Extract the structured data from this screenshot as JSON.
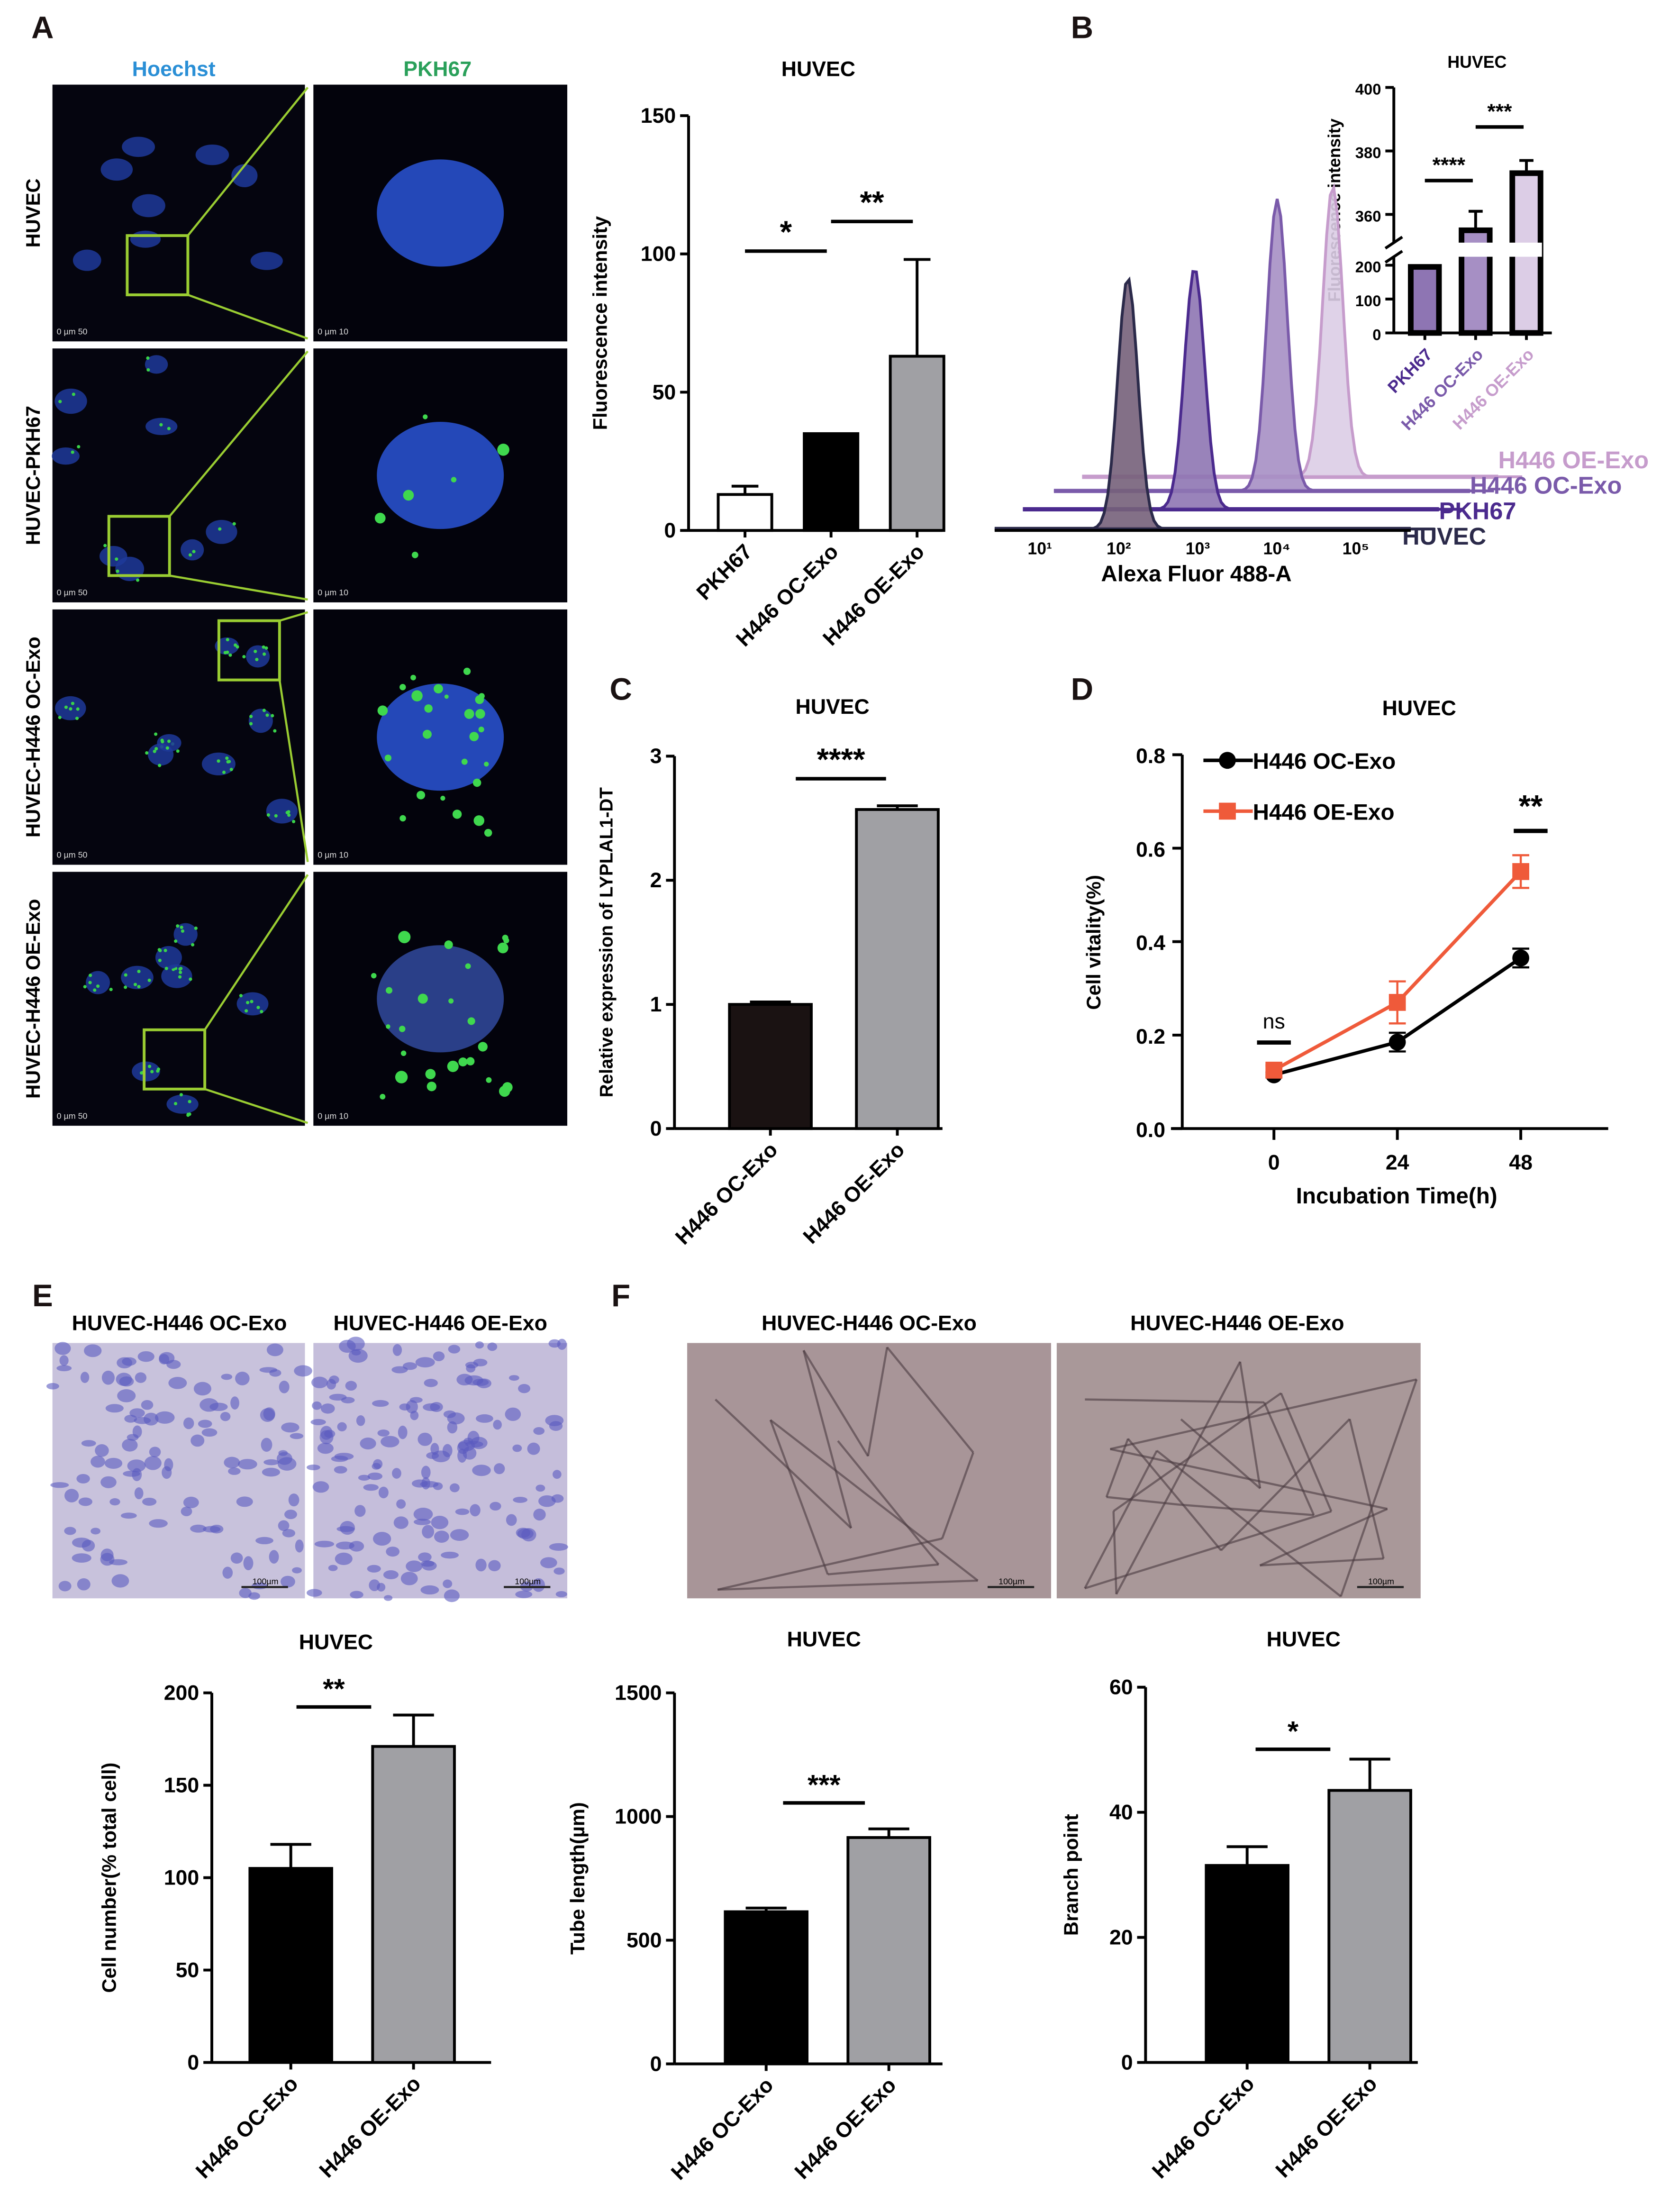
{
  "panel_labels": [
    "A",
    "B",
    "C",
    "D",
    "E",
    "F"
  ],
  "panel_a": {
    "column_headers": [
      {
        "text": "Hoechst",
        "color": "#2a8fd6"
      },
      {
        "text": "PKH67",
        "color": "#2aa05a"
      }
    ],
    "row_labels": [
      "HUVEC",
      "HUVEC-PKH67",
      "HUVEC-H446 OC-Exo",
      "HUVEC-H446 OE-Exo"
    ],
    "scale_bars": [
      [
        "0  µm  50",
        "0  µm  10"
      ],
      [
        "0  µm  50",
        "0  µm  10"
      ],
      [
        "0  µm  50",
        "0  µm  10"
      ],
      [
        "0  µm  50",
        "0  µm  10"
      ]
    ],
    "zoom_box_color": "#9acd32"
  },
  "panel_e": {
    "image_titles": [
      "HUVEC-H446 OC-Exo",
      "HUVEC-H446 OE-Exo"
    ],
    "scale_label": "100µm"
  },
  "panel_f": {
    "image_titles": [
      "HUVEC-H446 OC-Exo",
      "HUVEC-H446 OE-Exo"
    ],
    "scale_label": "100µm"
  },
  "chart_data": [
    {
      "id": "a_bar",
      "type": "bar",
      "title": "HUVEC",
      "ylabel": "Fluorescence intensity",
      "categories": [
        "PKH67",
        "H446 OC-Exo",
        "H446 OE-Exo"
      ],
      "values": [
        13,
        35,
        63
      ],
      "errors": [
        16,
        35,
        98
      ],
      "ylim": [
        0,
        150
      ],
      "yticks": [
        0,
        50,
        100,
        150
      ],
      "fills": [
        "#ffffff",
        "#000000",
        "#a0a0a4"
      ],
      "significance": [
        {
          "from": 0,
          "to": 1,
          "label": "*"
        },
        {
          "from": 1,
          "to": 2,
          "label": "**"
        }
      ]
    },
    {
      "id": "b_hist",
      "type": "area",
      "xlabel": "Alexa Fluor 488-A",
      "xscale": "log",
      "xticks": [
        "10¹",
        "10²",
        "10³",
        "10⁴",
        "10⁵"
      ],
      "series": [
        {
          "name": "HUVEC",
          "peak": 130,
          "color": "#2b2a4a",
          "fill": "#76607a"
        },
        {
          "name": "PKH67",
          "peak": 400,
          "color": "#4b2a8e",
          "fill": "#8e75b3"
        },
        {
          "name": "H446 OC-Exo",
          "peak": 1800,
          "color": "#7a5aaa",
          "fill": "#a68fc4"
        },
        {
          "name": "H446 OE-Exo",
          "peak": 4000,
          "color": "#c69ccc",
          "fill": "#dccde6"
        }
      ]
    },
    {
      "id": "b_inset",
      "type": "bar",
      "title": "HUVEC",
      "ylabel": "Fluorescence intensity",
      "categories": [
        "PKH67",
        "H446 OC-Exo",
        "H446 OE-Exo"
      ],
      "category_colors": [
        "#4b2a8e",
        "#7a5aaa",
        "#c69ccc"
      ],
      "values": [
        195,
        355,
        373
      ],
      "errors": [
        196,
        361,
        377
      ],
      "yticks": [
        0,
        100,
        200,
        360,
        380,
        400
      ],
      "axis_break": [
        200,
        350
      ],
      "fills": [
        "#8e75b3",
        "#a68fc4",
        "#dccde6"
      ],
      "significance": [
        {
          "from": 0,
          "to": 1,
          "label": "****"
        },
        {
          "from": 1,
          "to": 2,
          "label": "***"
        }
      ]
    },
    {
      "id": "c_bar",
      "type": "bar",
      "title": "HUVEC",
      "ylabel": "Relative expression of LYPLAL1-DT",
      "categories": [
        "H446 OC-Exo",
        "H446 OE-Exo"
      ],
      "values": [
        1.0,
        2.57
      ],
      "errors": [
        1.02,
        2.6
      ],
      "ylim": [
        0,
        3
      ],
      "yticks": [
        0,
        1,
        2,
        3
      ],
      "fills": [
        "#1a1212",
        "#a0a0a4"
      ],
      "significance": [
        {
          "from": 0,
          "to": 1,
          "label": "****"
        }
      ]
    },
    {
      "id": "d_line",
      "type": "line",
      "title": "HUVEC",
      "xlabel": "Incubation Time(h)",
      "ylabel": "Cell vitality(%)",
      "x": [
        0,
        24,
        48
      ],
      "ylim": [
        0,
        0.8
      ],
      "yticks": [
        "0.0",
        "0.2",
        "0.4",
        "0.6",
        "0.8"
      ],
      "series": [
        {
          "name": "H446 OC-Exo",
          "values": [
            0.115,
            0.185,
            0.365
          ],
          "errors": [
            0.005,
            0.02,
            0.02
          ],
          "color": "#000000",
          "marker": "circle"
        },
        {
          "name": "H446 OE-Exo",
          "values": [
            0.125,
            0.27,
            0.55
          ],
          "errors": [
            0.01,
            0.045,
            0.035
          ],
          "color": "#ef5a3a",
          "marker": "square"
        }
      ],
      "significance": [
        {
          "x": 0,
          "label": "ns"
        },
        {
          "x": 48,
          "label": "**"
        }
      ]
    },
    {
      "id": "e_bar",
      "type": "bar",
      "title": "HUVEC",
      "ylabel": "Cell number(% total  cell)",
      "categories": [
        "H446 OC-Exo",
        "H446 OE-Exo"
      ],
      "values": [
        105,
        171
      ],
      "errors": [
        118,
        188
      ],
      "ylim": [
        0,
        200
      ],
      "yticks": [
        0,
        50,
        100,
        150,
        200
      ],
      "fills": [
        "#000000",
        "#a0a0a4"
      ],
      "significance": [
        {
          "from": 0,
          "to": 1,
          "label": "**"
        }
      ]
    },
    {
      "id": "f_tube",
      "type": "bar",
      "title": "HUVEC",
      "ylabel": "Tube length(µm)",
      "categories": [
        "H446 OC-Exo",
        "H446 OE-Exo"
      ],
      "values": [
        615,
        915
      ],
      "errors": [
        630,
        950
      ],
      "ylim": [
        0,
        1500
      ],
      "yticks": [
        0,
        500,
        1000,
        1500
      ],
      "fills": [
        "#000000",
        "#a0a0a4"
      ],
      "significance": [
        {
          "from": 0,
          "to": 1,
          "label": "***"
        }
      ]
    },
    {
      "id": "f_branch",
      "type": "bar",
      "title": "HUVEC",
      "ylabel": "Branch point",
      "categories": [
        "H446 OC-Exo",
        "H446 OE-Exo"
      ],
      "values": [
        31.5,
        43.5
      ],
      "errors": [
        34.5,
        48.5
      ],
      "ylim": [
        0,
        60
      ],
      "yticks": [
        0,
        20,
        40,
        60
      ],
      "fills": [
        "#000000",
        "#a0a0a4"
      ],
      "significance": [
        {
          "from": 0,
          "to": 1,
          "label": "*"
        }
      ]
    }
  ]
}
